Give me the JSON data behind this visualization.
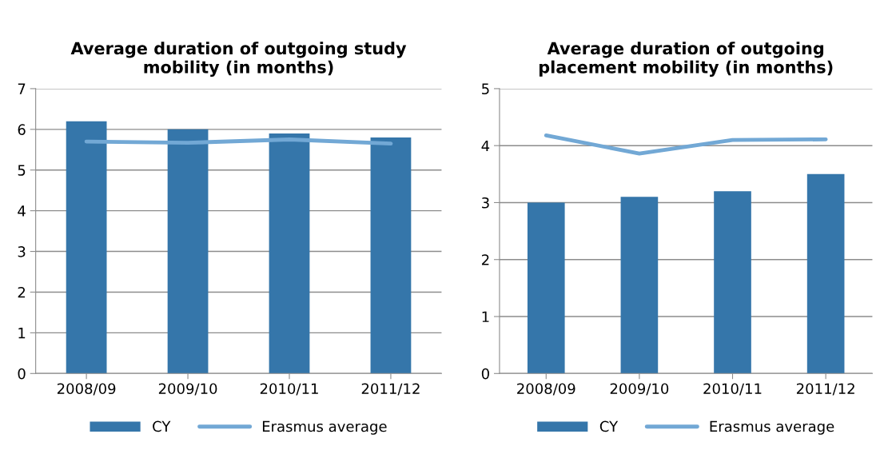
{
  "chart_data": [
    {
      "type": "bar",
      "title": "Average duration of outgoing study\nmobility (in months)",
      "categories": [
        "2008/09",
        "2009/10",
        "2010/11",
        "2011/12"
      ],
      "series": [
        {
          "name": "CY",
          "color": "#3576aa",
          "values": [
            6.2,
            6.0,
            5.9,
            5.8
          ]
        },
        {
          "name": "Erasmus average",
          "type": "line",
          "color": "#72a8d5",
          "values": [
            5.7,
            5.67,
            5.75,
            5.65
          ]
        }
      ],
      "ylim": [
        0,
        7
      ],
      "yticks": [
        0,
        1,
        2,
        3,
        4,
        5,
        6,
        7
      ],
      "grid": "y",
      "legend": "bottom",
      "marker": "none",
      "line_style": "solid"
    },
    {
      "type": "bar",
      "title": "Average duration of outgoing\nplacement mobility (in months)",
      "categories": [
        "2008/09",
        "2009/10",
        "2010/11",
        "2011/12"
      ],
      "series": [
        {
          "name": "CY",
          "color": "#3576aa",
          "values": [
            3.0,
            3.1,
            3.2,
            3.5
          ]
        },
        {
          "name": "Erasmus average",
          "type": "line",
          "color": "#72a8d5",
          "values": [
            4.18,
            3.86,
            4.1,
            4.11
          ]
        }
      ],
      "ylim": [
        0,
        5
      ],
      "yticks": [
        0,
        1,
        2,
        3,
        4,
        5
      ],
      "grid": "y",
      "legend": "bottom",
      "marker": "none",
      "line_style": "solid"
    }
  ]
}
